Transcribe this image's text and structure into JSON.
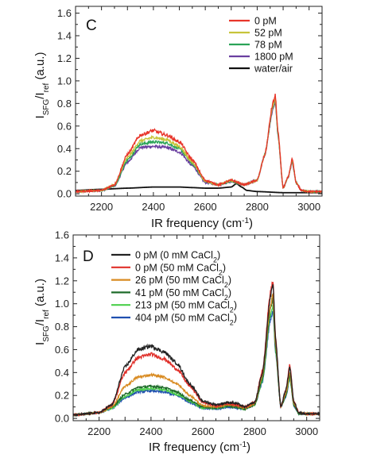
{
  "chart_data": [
    {
      "type": "line",
      "panel_label": "C",
      "xlabel": "IR frequency (cm",
      "xlabel_sup": "-1",
      "xlabel_tail": ")",
      "ylabel": [
        "I",
        "SFG",
        "/I",
        "ref",
        " (a.u.)"
      ],
      "xlim": [
        2100,
        3050
      ],
      "ylim": [
        -0.02,
        1.66
      ],
      "xticks": [
        2200,
        2400,
        2600,
        2800,
        3000
      ],
      "yticks": [
        0.0,
        0.2,
        0.4,
        0.6,
        0.8,
        1.0,
        1.2,
        1.4,
        1.6
      ],
      "ytick_labels": [
        "0.0",
        "0.2",
        "0.4",
        "0.6",
        "0.8",
        "1.0",
        "1.2",
        "1.4",
        "1.6"
      ],
      "legend_position": "top-right",
      "series": [
        {
          "name": "0 pM",
          "color": "#e8352a",
          "noise": 0.012,
          "x": [
            2100,
            2200,
            2250,
            2300,
            2350,
            2400,
            2450,
            2500,
            2550,
            2600,
            2650,
            2700,
            2750,
            2800,
            2830,
            2860,
            2870,
            2880,
            2900,
            2920,
            2935,
            2950,
            2970,
            3000,
            3050
          ],
          "y": [
            0.02,
            0.03,
            0.08,
            0.35,
            0.52,
            0.56,
            0.52,
            0.46,
            0.3,
            0.12,
            0.08,
            0.12,
            0.08,
            0.12,
            0.35,
            0.8,
            0.87,
            0.55,
            0.05,
            0.15,
            0.31,
            0.1,
            0.03,
            0.02,
            0.02
          ]
        },
        {
          "name": "52 pM",
          "color": "#c7c43a",
          "noise": 0.01,
          "x": [
            2100,
            2200,
            2250,
            2300,
            2350,
            2400,
            2450,
            2500,
            2550,
            2600,
            2650,
            2700,
            2750,
            2800,
            2830,
            2860,
            2870,
            2880,
            2900,
            2920,
            2935,
            2950,
            2970,
            3000,
            3050
          ],
          "y": [
            0.02,
            0.03,
            0.08,
            0.32,
            0.47,
            0.5,
            0.48,
            0.42,
            0.28,
            0.11,
            0.08,
            0.12,
            0.08,
            0.12,
            0.35,
            0.78,
            0.85,
            0.54,
            0.05,
            0.15,
            0.3,
            0.1,
            0.03,
            0.02,
            0.02
          ]
        },
        {
          "name": "78 pM",
          "color": "#2aa357",
          "noise": 0.01,
          "x": [
            2100,
            2200,
            2250,
            2300,
            2350,
            2400,
            2450,
            2500,
            2550,
            2600,
            2650,
            2700,
            2750,
            2800,
            2830,
            2860,
            2870,
            2880,
            2900,
            2920,
            2935,
            2950,
            2970,
            3000,
            3050
          ],
          "y": [
            0.02,
            0.03,
            0.07,
            0.3,
            0.44,
            0.46,
            0.45,
            0.4,
            0.27,
            0.11,
            0.08,
            0.11,
            0.08,
            0.12,
            0.35,
            0.77,
            0.83,
            0.53,
            0.05,
            0.15,
            0.29,
            0.1,
            0.03,
            0.02,
            0.02
          ]
        },
        {
          "name": "1800 pM",
          "color": "#6a3fa0",
          "noise": 0.012,
          "x": [
            2100,
            2200,
            2250,
            2300,
            2350,
            2400,
            2450,
            2500,
            2550,
            2600,
            2650,
            2700,
            2750,
            2800,
            2830,
            2860,
            2870,
            2880,
            2900,
            2920,
            2935,
            2950,
            2970,
            3000,
            3050
          ],
          "y": [
            0.02,
            0.03,
            0.07,
            0.28,
            0.41,
            0.42,
            0.41,
            0.37,
            0.25,
            0.1,
            0.08,
            0.11,
            0.08,
            0.12,
            0.35,
            0.75,
            0.81,
            0.52,
            0.05,
            0.15,
            0.28,
            0.1,
            0.03,
            0.02,
            0.02
          ]
        },
        {
          "name": "water/air",
          "color": "#111111",
          "noise": 0.0,
          "x": [
            2100,
            2200,
            2300,
            2400,
            2500,
            2550,
            2600,
            2650,
            2700,
            2720,
            2740,
            2760,
            2800,
            2900,
            3000,
            3050
          ],
          "y": [
            0.03,
            0.04,
            0.05,
            0.06,
            0.06,
            0.055,
            0.05,
            0.05,
            0.06,
            0.09,
            0.06,
            0.03,
            0.02,
            0.01,
            0.01,
            0.01
          ]
        }
      ]
    },
    {
      "type": "line",
      "panel_label": "D",
      "xlabel": "IR frequency (cm",
      "xlabel_sup": "-1",
      "xlabel_tail": ")",
      "ylabel": [
        "I",
        "SFG",
        "/I",
        "ref",
        " (a.u.)"
      ],
      "xlim": [
        2100,
        3050
      ],
      "ylim": [
        -0.02,
        1.6
      ],
      "xticks": [
        2200,
        2400,
        2600,
        2800,
        3000
      ],
      "yticks": [
        0.0,
        0.2,
        0.4,
        0.6,
        0.8,
        1.0,
        1.2,
        1.4,
        1.6
      ],
      "ytick_labels": [
        "0.0",
        "0.2",
        "0.4",
        "0.6",
        "0.8",
        "1.0",
        "1.2",
        "1.4",
        "1.6"
      ],
      "legend_position": "top-left",
      "series": [
        {
          "name": "0 pM (0 mM CaCl",
          "sub": "2",
          "tail": ")",
          "color": "#222222",
          "noise": 0.012,
          "x": [
            2100,
            2200,
            2250,
            2300,
            2350,
            2400,
            2450,
            2500,
            2550,
            2600,
            2650,
            2700,
            2730,
            2760,
            2800,
            2830,
            2860,
            2870,
            2880,
            2900,
            2920,
            2935,
            2950,
            2970,
            3000,
            3050
          ],
          "y": [
            0.03,
            0.05,
            0.12,
            0.45,
            0.6,
            0.63,
            0.58,
            0.48,
            0.3,
            0.15,
            0.12,
            0.14,
            0.13,
            0.1,
            0.14,
            0.4,
            1.05,
            1.18,
            0.7,
            0.1,
            0.25,
            0.45,
            0.15,
            0.05,
            0.04,
            0.04
          ]
        },
        {
          "name": "0 pM (50 mM CaCl",
          "sub": "2",
          "tail": ")",
          "color": "#e0302a",
          "noise": 0.012,
          "x": [
            2100,
            2200,
            2250,
            2300,
            2350,
            2400,
            2450,
            2500,
            2550,
            2600,
            2650,
            2700,
            2730,
            2760,
            2800,
            2830,
            2860,
            2870,
            2880,
            2900,
            2920,
            2935,
            2950,
            2970,
            3000,
            3050
          ],
          "y": [
            0.03,
            0.05,
            0.12,
            0.4,
            0.53,
            0.56,
            0.52,
            0.43,
            0.28,
            0.14,
            0.11,
            0.13,
            0.12,
            0.1,
            0.14,
            0.42,
            1.1,
            1.2,
            0.7,
            0.1,
            0.25,
            0.47,
            0.15,
            0.05,
            0.04,
            0.04
          ]
        },
        {
          "name": "26 pM (50 mM CaCl",
          "sub": "2",
          "tail": ")",
          "color": "#d98b22",
          "noise": 0.01,
          "x": [
            2100,
            2200,
            2250,
            2300,
            2350,
            2400,
            2450,
            2500,
            2550,
            2600,
            2650,
            2700,
            2730,
            2760,
            2800,
            2830,
            2860,
            2870,
            2880,
            2900,
            2920,
            2935,
            2950,
            2970,
            3000,
            3050
          ],
          "y": [
            0.03,
            0.05,
            0.1,
            0.28,
            0.36,
            0.38,
            0.36,
            0.3,
            0.2,
            0.11,
            0.1,
            0.12,
            0.11,
            0.09,
            0.13,
            0.38,
            0.98,
            1.08,
            0.65,
            0.1,
            0.22,
            0.4,
            0.13,
            0.05,
            0.04,
            0.04
          ]
        },
        {
          "name": "41 pM (50 mM CaCl",
          "sub": "2",
          "tail": ")",
          "color": "#1f6b2a",
          "noise": 0.01,
          "x": [
            2100,
            2200,
            2250,
            2300,
            2350,
            2400,
            2450,
            2500,
            2550,
            2600,
            2650,
            2700,
            2730,
            2760,
            2800,
            2830,
            2860,
            2870,
            2880,
            2900,
            2920,
            2935,
            2950,
            2970,
            3000,
            3050
          ],
          "y": [
            0.03,
            0.05,
            0.1,
            0.21,
            0.27,
            0.28,
            0.27,
            0.23,
            0.16,
            0.1,
            0.09,
            0.11,
            0.1,
            0.08,
            0.12,
            0.35,
            0.95,
            1.05,
            0.62,
            0.1,
            0.2,
            0.38,
            0.12,
            0.04,
            0.04,
            0.04
          ]
        },
        {
          "name": "213 pM (50 mM CaCl",
          "sub": "2",
          "tail": ")",
          "color": "#4ccf4c",
          "noise": 0.01,
          "x": [
            2100,
            2200,
            2250,
            2300,
            2350,
            2400,
            2450,
            2500,
            2550,
            2600,
            2650,
            2700,
            2730,
            2760,
            2800,
            2830,
            2860,
            2870,
            2880,
            2900,
            2920,
            2935,
            2950,
            2970,
            3000,
            3050
          ],
          "y": [
            0.03,
            0.05,
            0.09,
            0.19,
            0.25,
            0.26,
            0.25,
            0.21,
            0.15,
            0.09,
            0.09,
            0.11,
            0.1,
            0.08,
            0.12,
            0.33,
            0.9,
            0.98,
            0.6,
            0.1,
            0.2,
            0.36,
            0.12,
            0.04,
            0.04,
            0.04
          ]
        },
        {
          "name": "404 pM (50 mM CaCl",
          "sub": "2",
          "tail": ")",
          "color": "#1f4fb0",
          "noise": 0.01,
          "x": [
            2100,
            2200,
            2250,
            2300,
            2350,
            2400,
            2450,
            2500,
            2550,
            2600,
            2650,
            2700,
            2730,
            2760,
            2800,
            2830,
            2860,
            2870,
            2880,
            2900,
            2920,
            2935,
            2950,
            2970,
            3000,
            3050
          ],
          "y": [
            0.03,
            0.05,
            0.09,
            0.18,
            0.23,
            0.24,
            0.23,
            0.2,
            0.14,
            0.09,
            0.08,
            0.1,
            0.09,
            0.08,
            0.12,
            0.32,
            0.86,
            0.94,
            0.58,
            0.1,
            0.19,
            0.35,
            0.11,
            0.04,
            0.04,
            0.04
          ]
        }
      ]
    }
  ]
}
